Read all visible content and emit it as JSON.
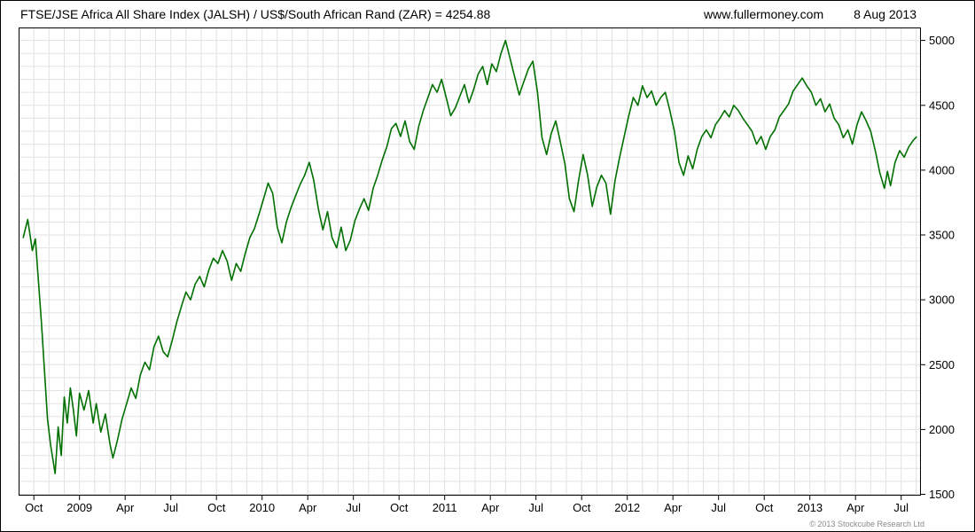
{
  "header": {
    "title": "FTSE/JSE Africa All Share Index (JALSH) / US$/South African Rand (ZAR) = 4254.88",
    "website": "www.fullermoney.com",
    "date": "8 Aug 2013"
  },
  "footer": {
    "copyright": "© 2013 Stockcube Research Ltd"
  },
  "chart_data": {
    "type": "line",
    "title": "FTSE/JSE Africa All Share Index (JALSH) / US$/South African Rand (ZAR)",
    "last_value": 4254.88,
    "line_color": "#007000",
    "grid_color": "#e2e2e2",
    "axis_color": "#000000",
    "x_unit": "months since Sep 2008",
    "xlim": [
      0,
      59.3
    ],
    "ylim": [
      1490,
      5100
    ],
    "grid_step_y": 100,
    "grid_step_x": 1,
    "legend": "none",
    "y_ticks": [
      1500,
      2000,
      2500,
      3000,
      3500,
      4000,
      4500,
      5000
    ],
    "x_ticks": [
      {
        "t": 1,
        "label": "Oct"
      },
      {
        "t": 4,
        "label": "2009"
      },
      {
        "t": 7,
        "label": "Apr"
      },
      {
        "t": 10,
        "label": "Jul"
      },
      {
        "t": 13,
        "label": "Oct"
      },
      {
        "t": 16,
        "label": "2010"
      },
      {
        "t": 19,
        "label": "Apr"
      },
      {
        "t": 22,
        "label": "Jul"
      },
      {
        "t": 25,
        "label": "Oct"
      },
      {
        "t": 28,
        "label": "2011"
      },
      {
        "t": 31,
        "label": "Apr"
      },
      {
        "t": 34,
        "label": "Jul"
      },
      {
        "t": 37,
        "label": "Oct"
      },
      {
        "t": 40,
        "label": "2012"
      },
      {
        "t": 43,
        "label": "Apr"
      },
      {
        "t": 46,
        "label": "Jul"
      },
      {
        "t": 49,
        "label": "Oct"
      },
      {
        "t": 52,
        "label": "2013"
      },
      {
        "t": 55,
        "label": "Apr"
      },
      {
        "t": 58,
        "label": "Jul"
      }
    ],
    "points": [
      [
        0.3,
        3480
      ],
      [
        0.6,
        3620
      ],
      [
        0.9,
        3380
      ],
      [
        1.1,
        3470
      ],
      [
        1.3,
        3150
      ],
      [
        1.5,
        2820
      ],
      [
        1.7,
        2450
      ],
      [
        1.9,
        2080
      ],
      [
        2.1,
        1880
      ],
      [
        2.4,
        1660
      ],
      [
        2.6,
        2020
      ],
      [
        2.8,
        1800
      ],
      [
        3.0,
        2250
      ],
      [
        3.2,
        2050
      ],
      [
        3.4,
        2320
      ],
      [
        3.6,
        2150
      ],
      [
        3.8,
        1950
      ],
      [
        4.0,
        2280
      ],
      [
        4.3,
        2150
      ],
      [
        4.6,
        2300
      ],
      [
        4.9,
        2050
      ],
      [
        5.1,
        2200
      ],
      [
        5.4,
        1980
      ],
      [
        5.7,
        2120
      ],
      [
        6.0,
        1890
      ],
      [
        6.2,
        1780
      ],
      [
        6.5,
        1920
      ],
      [
        6.8,
        2080
      ],
      [
        7.1,
        2200
      ],
      [
        7.4,
        2320
      ],
      [
        7.7,
        2240
      ],
      [
        8.0,
        2420
      ],
      [
        8.3,
        2520
      ],
      [
        8.6,
        2460
      ],
      [
        8.9,
        2640
      ],
      [
        9.2,
        2720
      ],
      [
        9.5,
        2600
      ],
      [
        9.8,
        2560
      ],
      [
        10.1,
        2690
      ],
      [
        10.4,
        2830
      ],
      [
        10.7,
        2950
      ],
      [
        11.0,
        3060
      ],
      [
        11.3,
        3000
      ],
      [
        11.6,
        3120
      ],
      [
        11.9,
        3180
      ],
      [
        12.2,
        3100
      ],
      [
        12.5,
        3230
      ],
      [
        12.8,
        3320
      ],
      [
        13.1,
        3280
      ],
      [
        13.4,
        3380
      ],
      [
        13.7,
        3300
      ],
      [
        14.0,
        3150
      ],
      [
        14.3,
        3280
      ],
      [
        14.6,
        3220
      ],
      [
        14.9,
        3360
      ],
      [
        15.2,
        3480
      ],
      [
        15.5,
        3550
      ],
      [
        15.8,
        3660
      ],
      [
        16.1,
        3780
      ],
      [
        16.4,
        3900
      ],
      [
        16.7,
        3820
      ],
      [
        17.0,
        3560
      ],
      [
        17.3,
        3440
      ],
      [
        17.6,
        3600
      ],
      [
        17.9,
        3710
      ],
      [
        18.2,
        3800
      ],
      [
        18.5,
        3890
      ],
      [
        18.8,
        3960
      ],
      [
        19.1,
        4060
      ],
      [
        19.4,
        3920
      ],
      [
        19.7,
        3700
      ],
      [
        20.0,
        3540
      ],
      [
        20.3,
        3680
      ],
      [
        20.6,
        3480
      ],
      [
        20.9,
        3400
      ],
      [
        21.2,
        3560
      ],
      [
        21.5,
        3380
      ],
      [
        21.8,
        3460
      ],
      [
        22.1,
        3610
      ],
      [
        22.4,
        3700
      ],
      [
        22.7,
        3780
      ],
      [
        23.0,
        3690
      ],
      [
        23.3,
        3860
      ],
      [
        23.6,
        3960
      ],
      [
        23.9,
        4080
      ],
      [
        24.2,
        4180
      ],
      [
        24.5,
        4320
      ],
      [
        24.8,
        4360
      ],
      [
        25.1,
        4260
      ],
      [
        25.4,
        4380
      ],
      [
        25.7,
        4220
      ],
      [
        26.0,
        4160
      ],
      [
        26.3,
        4340
      ],
      [
        26.6,
        4460
      ],
      [
        26.9,
        4560
      ],
      [
        27.2,
        4660
      ],
      [
        27.5,
        4600
      ],
      [
        27.8,
        4700
      ],
      [
        28.1,
        4560
      ],
      [
        28.4,
        4420
      ],
      [
        28.7,
        4480
      ],
      [
        29.0,
        4570
      ],
      [
        29.3,
        4660
      ],
      [
        29.6,
        4520
      ],
      [
        29.9,
        4620
      ],
      [
        30.2,
        4740
      ],
      [
        30.5,
        4800
      ],
      [
        30.8,
        4660
      ],
      [
        31.1,
        4820
      ],
      [
        31.4,
        4760
      ],
      [
        31.7,
        4900
      ],
      [
        32.0,
        5000
      ],
      [
        32.3,
        4860
      ],
      [
        32.6,
        4720
      ],
      [
        32.9,
        4580
      ],
      [
        33.2,
        4680
      ],
      [
        33.5,
        4780
      ],
      [
        33.8,
        4840
      ],
      [
        34.1,
        4600
      ],
      [
        34.4,
        4250
      ],
      [
        34.7,
        4120
      ],
      [
        35.0,
        4280
      ],
      [
        35.3,
        4380
      ],
      [
        35.6,
        4220
      ],
      [
        35.9,
        4050
      ],
      [
        36.2,
        3780
      ],
      [
        36.5,
        3680
      ],
      [
        36.8,
        3920
      ],
      [
        37.1,
        4120
      ],
      [
        37.4,
        3960
      ],
      [
        37.7,
        3720
      ],
      [
        38.0,
        3870
      ],
      [
        38.3,
        3960
      ],
      [
        38.6,
        3900
      ],
      [
        38.9,
        3660
      ],
      [
        39.2,
        3920
      ],
      [
        39.5,
        4100
      ],
      [
        39.8,
        4260
      ],
      [
        40.1,
        4420
      ],
      [
        40.4,
        4560
      ],
      [
        40.7,
        4500
      ],
      [
        41.0,
        4650
      ],
      [
        41.3,
        4560
      ],
      [
        41.6,
        4610
      ],
      [
        41.9,
        4500
      ],
      [
        42.2,
        4560
      ],
      [
        42.5,
        4600
      ],
      [
        42.8,
        4460
      ],
      [
        43.1,
        4300
      ],
      [
        43.4,
        4060
      ],
      [
        43.7,
        3960
      ],
      [
        44.0,
        4110
      ],
      [
        44.3,
        4010
      ],
      [
        44.6,
        4160
      ],
      [
        44.9,
        4260
      ],
      [
        45.2,
        4310
      ],
      [
        45.5,
        4250
      ],
      [
        45.8,
        4350
      ],
      [
        46.1,
        4400
      ],
      [
        46.4,
        4460
      ],
      [
        46.7,
        4410
      ],
      [
        47.0,
        4500
      ],
      [
        47.3,
        4460
      ],
      [
        47.6,
        4400
      ],
      [
        47.9,
        4350
      ],
      [
        48.2,
        4300
      ],
      [
        48.5,
        4200
      ],
      [
        48.8,
        4260
      ],
      [
        49.1,
        4160
      ],
      [
        49.4,
        4260
      ],
      [
        49.7,
        4310
      ],
      [
        50.0,
        4410
      ],
      [
        50.3,
        4460
      ],
      [
        50.6,
        4510
      ],
      [
        50.9,
        4610
      ],
      [
        51.2,
        4660
      ],
      [
        51.5,
        4710
      ],
      [
        51.8,
        4650
      ],
      [
        52.1,
        4600
      ],
      [
        52.4,
        4500
      ],
      [
        52.7,
        4550
      ],
      [
        53.0,
        4450
      ],
      [
        53.3,
        4510
      ],
      [
        53.6,
        4400
      ],
      [
        53.9,
        4350
      ],
      [
        54.2,
        4250
      ],
      [
        54.5,
        4310
      ],
      [
        54.8,
        4200
      ],
      [
        55.1,
        4350
      ],
      [
        55.4,
        4450
      ],
      [
        55.7,
        4380
      ],
      [
        56.0,
        4300
      ],
      [
        56.3,
        4150
      ],
      [
        56.6,
        3980
      ],
      [
        56.9,
        3860
      ],
      [
        57.1,
        3990
      ],
      [
        57.3,
        3880
      ],
      [
        57.6,
        4060
      ],
      [
        57.9,
        4150
      ],
      [
        58.2,
        4100
      ],
      [
        58.5,
        4180
      ],
      [
        58.8,
        4230
      ],
      [
        59.0,
        4254.88
      ]
    ]
  }
}
